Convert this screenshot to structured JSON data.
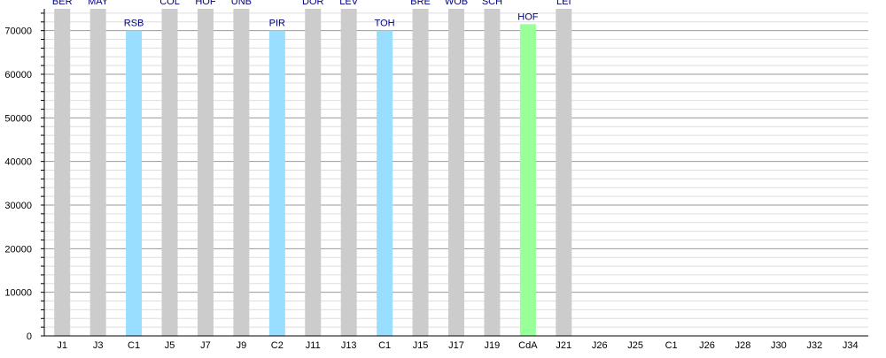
{
  "chart_data": {
    "type": "bar",
    "title": "",
    "xlabel": "",
    "ylabel": "",
    "ylim": [
      0,
      75000
    ],
    "yticks": [
      0,
      10000,
      20000,
      30000,
      40000,
      50000,
      60000,
      70000
    ],
    "grid": true,
    "legend": "none",
    "categories": [
      "J1",
      "J3",
      "C1",
      "J5",
      "J7",
      "J9",
      "C2",
      "J11",
      "J13",
      "C1",
      "J15",
      "J17",
      "J19",
      "CdA",
      "J21",
      "J26",
      "J25",
      "C1",
      "J26",
      "J28",
      "J30",
      "J32",
      "J34"
    ],
    "opponents": [
      "BER",
      "MAY",
      "RSB",
      "COL",
      "HOF",
      "UNB",
      "PIR",
      "DOR",
      "LEV",
      "TOH",
      "BRÊ",
      "WOB",
      "SCH",
      "HOF",
      "LEI",
      "",
      "",
      "",
      "",
      "",
      "",
      "",
      ""
    ],
    "values": [
      75000,
      75000,
      70000,
      75000,
      75000,
      75000,
      70000,
      75000,
      75000,
      70000,
      75000,
      75000,
      75000,
      71500,
      75000,
      null,
      null,
      null,
      null,
      null,
      null,
      null,
      null
    ],
    "kinds": [
      "league",
      "league",
      "cup",
      "league",
      "league",
      "league",
      "cup",
      "league",
      "league",
      "cup",
      "league",
      "league",
      "league",
      "supercup",
      "league",
      "",
      "",
      "",
      "",
      "",
      "",
      "",
      ""
    ]
  },
  "colors": {
    "league": "#cccccc",
    "cup": "#99ddff",
    "supercup": "#99ff99",
    "label": "#000080",
    "axis": "#000000",
    "grid_major": "#999999",
    "grid_minor": "#dddddd"
  }
}
